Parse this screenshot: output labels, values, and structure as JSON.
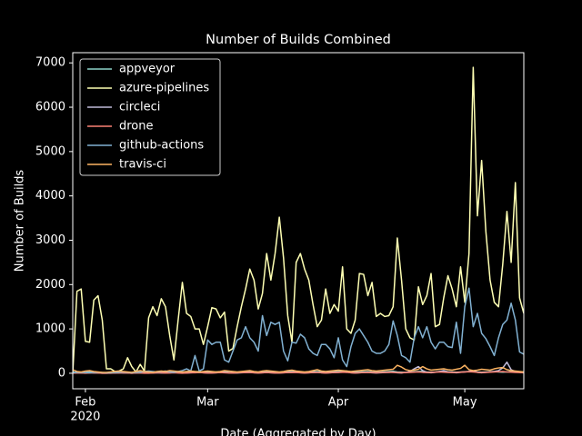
{
  "chart_data": {
    "type": "line",
    "title": "Number of Builds Combined",
    "x_label": "Date (Aggregated by Day)",
    "y_label": "Number of Builds",
    "x_offset": "2020",
    "x": [
      29,
      30,
      31,
      32,
      33,
      34,
      35,
      36,
      37,
      38,
      39,
      40,
      41,
      42,
      43,
      44,
      45,
      46,
      47,
      48,
      49,
      50,
      51,
      52,
      53,
      54,
      55,
      56,
      57,
      58,
      59,
      60,
      61,
      62,
      63,
      64,
      65,
      66,
      67,
      68,
      69,
      70,
      71,
      72,
      73,
      74,
      75,
      76,
      77,
      78,
      79,
      80,
      81,
      82,
      83,
      84,
      85,
      86,
      87,
      88,
      89,
      90,
      91,
      92,
      93,
      94,
      95,
      96,
      97,
      98,
      99,
      100,
      101,
      102,
      103,
      104,
      105,
      106,
      107,
      108,
      109,
      110,
      111,
      112,
      113,
      114,
      115,
      116,
      117,
      118,
      119,
      120,
      121,
      122,
      123,
      124,
      125,
      126,
      127,
      128,
      129,
      130,
      131,
      132,
      133,
      134,
      135,
      136
    ],
    "xlim": [
      29,
      136
    ],
    "xticks": [
      {
        "value": 32,
        "label": "Feb"
      },
      {
        "value": 61,
        "label": "Mar"
      },
      {
        "value": 92,
        "label": "Apr"
      },
      {
        "value": 122,
        "label": "May"
      }
    ],
    "ylim": [
      -350,
      7230
    ],
    "yticks": [
      0,
      1000,
      2000,
      3000,
      4000,
      5000,
      6000,
      7000
    ],
    "grid": false,
    "legend": "upper left",
    "series": [
      {
        "name": "appveyor",
        "color": "#8dd3c7",
        "values": [
          20,
          30,
          25,
          20,
          35,
          30,
          20,
          15,
          10,
          15,
          20,
          25,
          30,
          20,
          15,
          30,
          35,
          25,
          20,
          20,
          30,
          25,
          20,
          40,
          35,
          30,
          25,
          20,
          30,
          35,
          40,
          30,
          25,
          20,
          30,
          35,
          40,
          45,
          30,
          25,
          30,
          35,
          40,
          30,
          25,
          35,
          40,
          30,
          25,
          20,
          30,
          35,
          40,
          45,
          30,
          25,
          30,
          35,
          40,
          30,
          25,
          30,
          35,
          40,
          45,
          50,
          30,
          25,
          30,
          35,
          40,
          30,
          25,
          30,
          35,
          40,
          45,
          30,
          25,
          20,
          30,
          35,
          40,
          45,
          30,
          25,
          30,
          40,
          50,
          35,
          30,
          25,
          30,
          35,
          40,
          45,
          30,
          25,
          30,
          35,
          40,
          30,
          25,
          30,
          35,
          40,
          30,
          25
        ]
      },
      {
        "name": "azure-pipelines",
        "color": "#feffb3",
        "values": [
          0,
          1850,
          1900,
          720,
          700,
          1650,
          1750,
          1200,
          100,
          100,
          40,
          50,
          100,
          350,
          150,
          30,
          200,
          50,
          1250,
          1500,
          1300,
          1680,
          1500,
          850,
          300,
          1200,
          2050,
          1350,
          1280,
          1000,
          1000,
          650,
          1050,
          1480,
          1450,
          1250,
          1380,
          500,
          560,
          1050,
          1500,
          1900,
          2350,
          2100,
          1450,
          1800,
          2700,
          2100,
          2700,
          3520,
          2600,
          1300,
          700,
          2500,
          2700,
          2350,
          2100,
          1550,
          1050,
          1200,
          1900,
          1350,
          1550,
          1400,
          2400,
          1000,
          900,
          1200,
          2250,
          2230,
          1750,
          2050,
          1280,
          1350,
          1280,
          1300,
          1500,
          3050,
          2100,
          1000,
          800,
          750,
          1950,
          1550,
          1750,
          2250,
          1050,
          1100,
          1700,
          2200,
          1900,
          1500,
          2400,
          1600,
          2700,
          6900,
          3550,
          4800,
          3200,
          2100,
          1600,
          1500,
          2450,
          3650,
          2500,
          4300,
          1700,
          1350
        ]
      },
      {
        "name": "circleci",
        "color": "#bfbbd9",
        "values": [
          5,
          10,
          5,
          5,
          10,
          5,
          5,
          0,
          0,
          5,
          5,
          10,
          5,
          5,
          0,
          5,
          10,
          5,
          5,
          5,
          10,
          5,
          5,
          10,
          15,
          10,
          5,
          5,
          10,
          15,
          20,
          10,
          5,
          5,
          10,
          15,
          20,
          10,
          5,
          5,
          10,
          15,
          20,
          10,
          5,
          10,
          15,
          10,
          5,
          5,
          10,
          15,
          20,
          25,
          10,
          5,
          10,
          15,
          20,
          10,
          5,
          10,
          15,
          20,
          25,
          30,
          10,
          5,
          10,
          15,
          20,
          10,
          5,
          10,
          15,
          20,
          25,
          10,
          5,
          20,
          40,
          100,
          150,
          60,
          20,
          10,
          20,
          40,
          60,
          30,
          20,
          10,
          20,
          30,
          40,
          50,
          20,
          10,
          20,
          30,
          40,
          60,
          120,
          250,
          80,
          40,
          20,
          10
        ]
      },
      {
        "name": "drone",
        "color": "#fa8174",
        "values": [
          0,
          5,
          5,
          0,
          5,
          10,
          5,
          0,
          0,
          0,
          5,
          5,
          10,
          5,
          0,
          5,
          5,
          0,
          0,
          5,
          10,
          10,
          5,
          5,
          10,
          5,
          0,
          5,
          10,
          10,
          15,
          10,
          5,
          5,
          10,
          15,
          10,
          5,
          5,
          10,
          15,
          20,
          15,
          10,
          5,
          10,
          15,
          10,
          5,
          5,
          10,
          15,
          20,
          15,
          10,
          5,
          10,
          15,
          20,
          10,
          5,
          10,
          15,
          20,
          25,
          20,
          10,
          5,
          10,
          15,
          20,
          15,
          10,
          15,
          20,
          25,
          20,
          15,
          10,
          15,
          20,
          25,
          30,
          20,
          15,
          20,
          25,
          30,
          25,
          20,
          15,
          20,
          25,
          30,
          35,
          30,
          20,
          15,
          20,
          25,
          30,
          35,
          40,
          30,
          25,
          20,
          15,
          10
        ]
      },
      {
        "name": "github-actions",
        "color": "#81b1d2",
        "values": [
          10,
          20,
          20,
          15,
          10,
          20,
          25,
          15,
          10,
          10,
          15,
          20,
          30,
          20,
          10,
          20,
          25,
          40,
          50,
          40,
          30,
          40,
          50,
          30,
          20,
          40,
          60,
          100,
          50,
          400,
          50,
          100,
          750,
          650,
          700,
          700,
          300,
          250,
          500,
          750,
          800,
          1050,
          800,
          700,
          500,
          1300,
          850,
          1150,
          1100,
          1150,
          500,
          280,
          700,
          680,
          880,
          800,
          550,
          450,
          400,
          650,
          650,
          550,
          350,
          800,
          300,
          150,
          600,
          900,
          1000,
          850,
          700,
          500,
          450,
          450,
          500,
          650,
          1180,
          850,
          400,
          350,
          250,
          800,
          1050,
          800,
          1050,
          700,
          550,
          700,
          700,
          600,
          580,
          1150,
          450,
          1500,
          1920,
          1050,
          1350,
          900,
          780,
          600,
          400,
          800,
          1100,
          1200,
          1580,
          1200,
          480,
          430
        ]
      },
      {
        "name": "travis-ci",
        "color": "#fdb462",
        "values": [
          80,
          40,
          30,
          50,
          60,
          40,
          30,
          20,
          20,
          30,
          40,
          50,
          40,
          30,
          20,
          40,
          60,
          40,
          30,
          20,
          40,
          50,
          40,
          60,
          50,
          40,
          30,
          40,
          50,
          40,
          30,
          40,
          50,
          40,
          30,
          40,
          60,
          50,
          40,
          30,
          40,
          50,
          60,
          40,
          30,
          50,
          60,
          50,
          40,
          30,
          40,
          60,
          70,
          50,
          40,
          30,
          40,
          60,
          80,
          50,
          40,
          50,
          60,
          70,
          60,
          50,
          40,
          50,
          60,
          70,
          80,
          60,
          50,
          60,
          70,
          80,
          90,
          180,
          140,
          80,
          60,
          70,
          90,
          150,
          100,
          70,
          80,
          90,
          100,
          80,
          70,
          90,
          110,
          180,
          80,
          60,
          70,
          90,
          80,
          70,
          100,
          120,
          130,
          80,
          60,
          50,
          40,
          30
        ]
      }
    ]
  }
}
